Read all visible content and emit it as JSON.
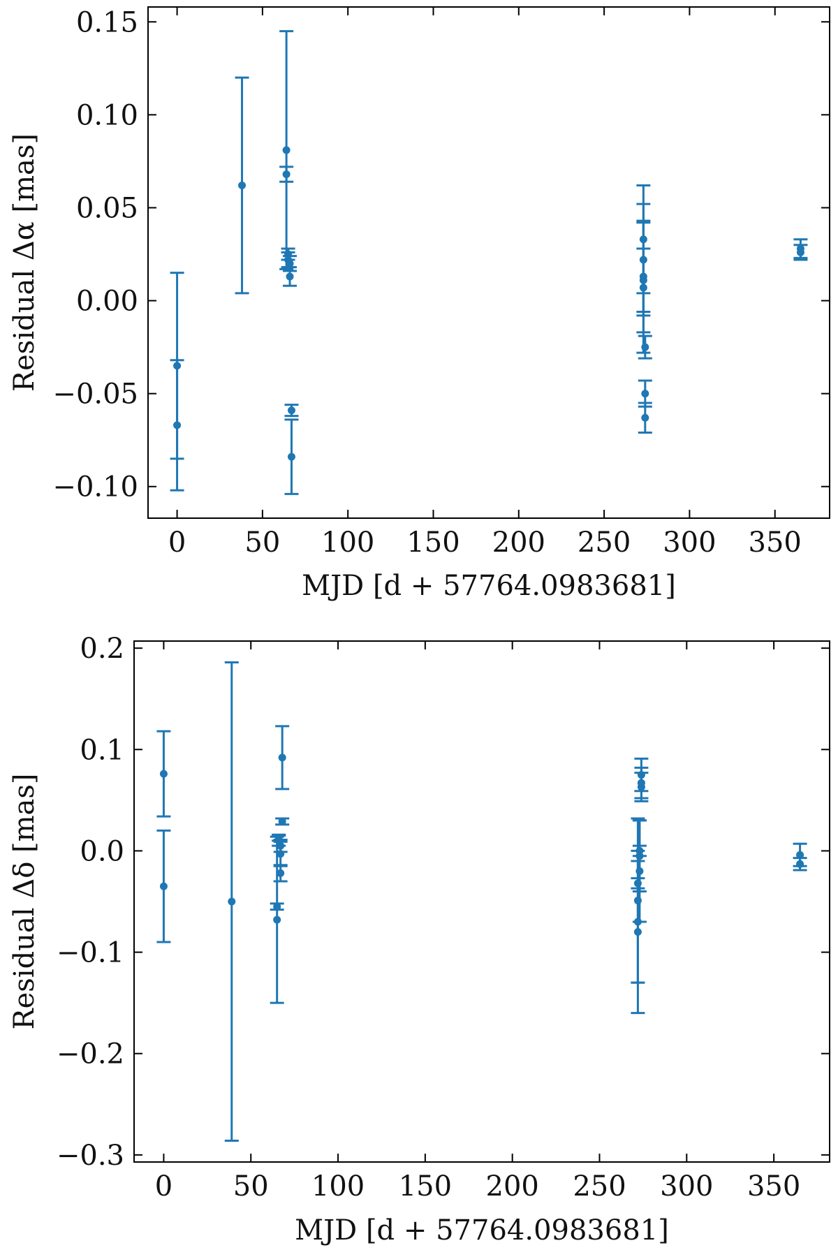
{
  "chart_data": [
    {
      "type": "scatter",
      "xlabel": "MJD [d + 57764.0983681]",
      "ylabel": "Residual Δα [mas]",
      "xlim": [
        -17,
        382
      ],
      "ylim": [
        -0.117,
        0.158
      ],
      "xticks": [
        0,
        50,
        100,
        150,
        200,
        250,
        300,
        350
      ],
      "xtick_labels": [
        "0",
        "50",
        "100",
        "150",
        "200",
        "250",
        "300",
        "350"
      ],
      "yticks": [
        -0.1,
        -0.05,
        0.0,
        0.05,
        0.1,
        0.15
      ],
      "ytick_labels": [
        "−0.10",
        "−0.05",
        "0.00",
        "0.05",
        "0.10",
        "0.15"
      ],
      "grid": false,
      "color": "#1f77b4",
      "points": [
        {
          "x": 0,
          "y": -0.035,
          "err": 0.05
        },
        {
          "x": 0,
          "y": -0.067,
          "err": 0.035
        },
        {
          "x": 38,
          "y": 0.062,
          "err": 0.058
        },
        {
          "x": 64,
          "y": 0.081,
          "err": 0.064
        },
        {
          "x": 64,
          "y": 0.068,
          "err": 0.004
        },
        {
          "x": 65,
          "y": 0.025,
          "err": 0.003
        },
        {
          "x": 65,
          "y": 0.022,
          "err": 0.004
        },
        {
          "x": 66,
          "y": 0.02,
          "err": 0.004
        },
        {
          "x": 66,
          "y": 0.013,
          "err": 0.005
        },
        {
          "x": 67,
          "y": -0.059,
          "err": 0.003
        },
        {
          "x": 67,
          "y": -0.084,
          "err": 0.02
        },
        {
          "x": 273,
          "y": 0.033,
          "err": 0.029
        },
        {
          "x": 273,
          "y": 0.022,
          "err": 0.03
        },
        {
          "x": 273,
          "y": 0.013,
          "err": 0.03
        },
        {
          "x": 273,
          "y": 0.011,
          "err": 0.017
        },
        {
          "x": 273,
          "y": 0.007,
          "err": 0.035
        },
        {
          "x": 274,
          "y": -0.025,
          "err": 0.006
        },
        {
          "x": 274,
          "y": -0.05,
          "err": 0.007
        },
        {
          "x": 274,
          "y": -0.063,
          "err": 0.008
        },
        {
          "x": 365,
          "y": 0.028,
          "err": 0.005
        },
        {
          "x": 365,
          "y": 0.026,
          "err": 0.004
        }
      ]
    },
    {
      "type": "scatter",
      "xlabel": "MJD [d + 57764.0983681]",
      "ylabel": "Residual Δδ [mas]",
      "xlim": [
        -17,
        382
      ],
      "ylim": [
        -0.307,
        0.207
      ],
      "xticks": [
        0,
        50,
        100,
        150,
        200,
        250,
        300,
        350
      ],
      "xtick_labels": [
        "0",
        "50",
        "100",
        "150",
        "200",
        "250",
        "300",
        "350"
      ],
      "yticks": [
        -0.3,
        -0.2,
        -0.1,
        0.0,
        0.1,
        0.2
      ],
      "ytick_labels": [
        "−0.3",
        "−0.2",
        "−0.1",
        "0.0",
        "0.1",
        "0.2"
      ],
      "grid": false,
      "color": "#1f77b4",
      "points": [
        {
          "x": 0,
          "y": 0.076,
          "err": 0.042
        },
        {
          "x": 0,
          "y": -0.035,
          "err": 0.055
        },
        {
          "x": 39,
          "y": -0.05,
          "err": 0.236
        },
        {
          "x": 65,
          "y": -0.068,
          "err": 0.082
        },
        {
          "x": 65,
          "y": -0.055,
          "err": 0.003
        },
        {
          "x": 66,
          "y": 0.013,
          "err": 0.003
        },
        {
          "x": 66,
          "y": 0.01,
          "err": 0.005
        },
        {
          "x": 67,
          "y": 0.005,
          "err": 0.006
        },
        {
          "x": 67,
          "y": -0.003,
          "err": 0.012
        },
        {
          "x": 67,
          "y": -0.022,
          "err": 0.008
        },
        {
          "x": 68,
          "y": 0.092,
          "err": 0.031
        },
        {
          "x": 68,
          "y": 0.029,
          "err": 0.003
        },
        {
          "x": 272,
          "y": -0.049,
          "err": 0.081
        },
        {
          "x": 272,
          "y": -0.07,
          "err": 0.06
        },
        {
          "x": 272,
          "y": -0.08,
          "err": 0.08
        },
        {
          "x": 272,
          "y": -0.032,
          "err": 0.005
        },
        {
          "x": 273,
          "y": -0.02,
          "err": 0.05
        },
        {
          "x": 273,
          "y": 0.0,
          "err": 0.005
        },
        {
          "x": 273,
          "y": -0.005,
          "err": 0.035
        },
        {
          "x": 274,
          "y": 0.075,
          "err": 0.016
        },
        {
          "x": 274,
          "y": 0.067,
          "err": 0.015
        },
        {
          "x": 274,
          "y": 0.063,
          "err": 0.014
        },
        {
          "x": 365,
          "y": -0.004,
          "err": 0.011
        },
        {
          "x": 365,
          "y": -0.013,
          "err": 0.006
        }
      ]
    }
  ]
}
